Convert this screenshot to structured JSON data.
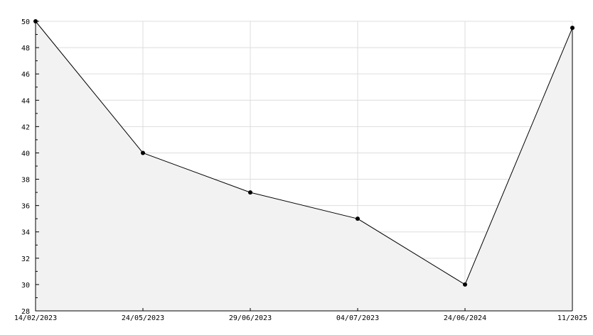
{
  "chart_data": {
    "type": "area",
    "title": "",
    "xlabel": "",
    "ylabel": "",
    "categories": [
      "14/02/2023",
      "24/05/2023",
      "29/06/2023",
      "04/07/2023",
      "24/06/2024",
      "11/2025"
    ],
    "series": [
      {
        "values": [
          50,
          40,
          37,
          35,
          30,
          49.5
        ]
      }
    ],
    "ylim": [
      28,
      50
    ],
    "yticks": [
      28,
      30,
      32,
      34,
      36,
      38,
      40,
      42,
      44,
      46,
      48,
      50
    ],
    "grid": true,
    "legend": "none",
    "colors": {
      "line": "#000000",
      "fill": "#f2f2f2",
      "grid": "#dddddd",
      "marker": "#000000"
    }
  }
}
